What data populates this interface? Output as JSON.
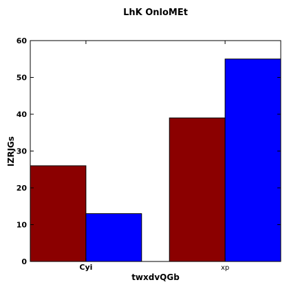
{
  "chart_data": {
    "type": "bar",
    "title": "LhK OnloMEt",
    "xlabel": "twxdvQGb",
    "ylabel": "IZRJGs",
    "categories": [
      "Cyi",
      "xp"
    ],
    "series": [
      {
        "color": "#8b0000",
        "values": [
          26,
          39
        ]
      },
      {
        "color": "#0000ff",
        "values": [
          13,
          55
        ]
      }
    ],
    "ylim": [
      0,
      60
    ],
    "yticks": [
      0,
      10,
      20,
      30,
      40,
      50,
      60
    ],
    "grid": false,
    "legend": "none"
  }
}
